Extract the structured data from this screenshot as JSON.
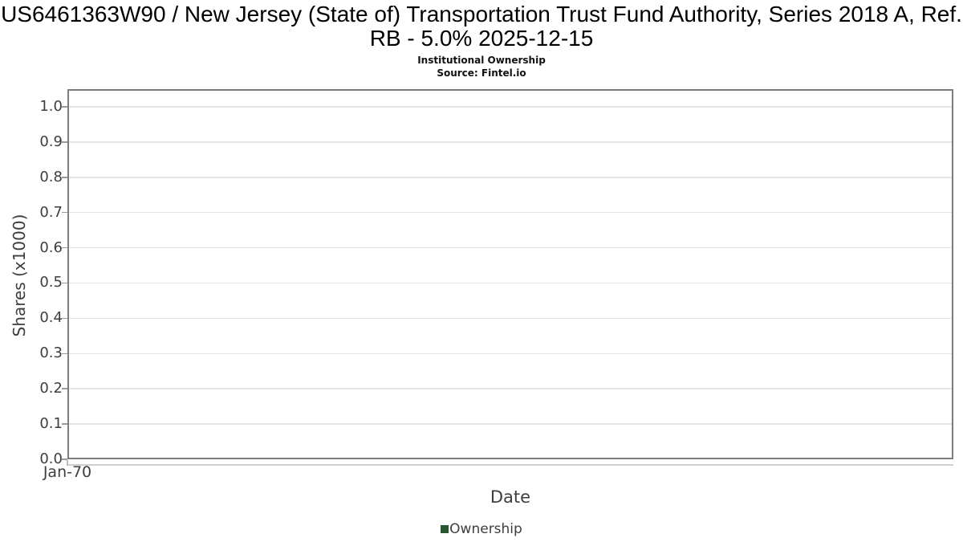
{
  "chart_data": {
    "type": "line",
    "title": "US6461363W90 / New Jersey (State of) Transportation Trust Fund Authority, Series 2018 A, Ref. RB - 5.0% 2025-12-15",
    "subtitle": "Institutional Ownership",
    "source": "Source: Fintel.io",
    "xlabel": "Date",
    "ylabel": "Shares (x1000)",
    "ylim": [
      0.0,
      1.05
    ],
    "yticks": [
      "0.0",
      "0.1",
      "0.2",
      "0.3",
      "0.4",
      "0.5",
      "0.6",
      "0.7",
      "0.8",
      "0.9",
      "1.0"
    ],
    "xticks": [
      "Jan-70"
    ],
    "grid": true,
    "legend_position": "bottom-center",
    "series": [
      {
        "name": "Ownership",
        "color": "#26572e",
        "x": [],
        "y": []
      }
    ],
    "colors": {
      "plot_border": "#7c7c7c",
      "gridline": "#e4e4e4",
      "axis_text": "#3e3e3e",
      "title_text": "#000000",
      "ownership_green": "#26572e"
    }
  }
}
